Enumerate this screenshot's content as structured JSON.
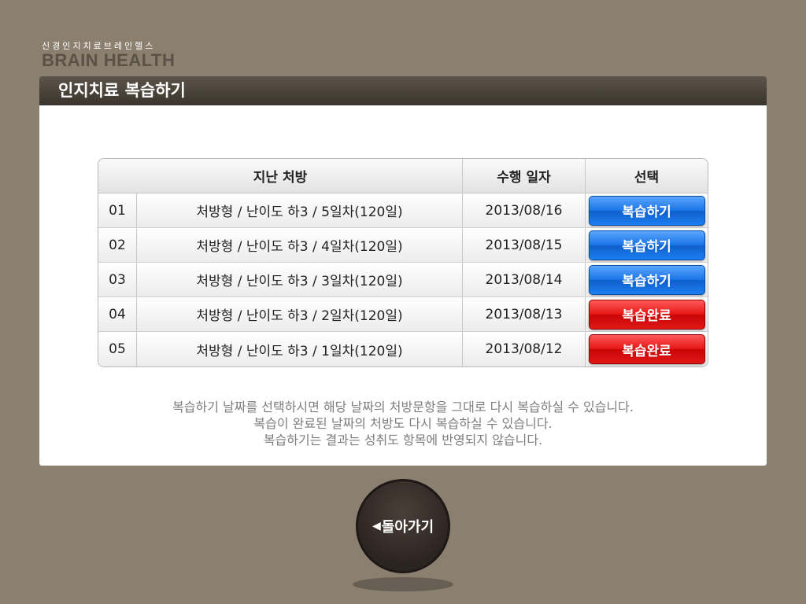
{
  "logo": {
    "subtitle": "신경인지치료브레인헬스",
    "title": "BRAIN HEALTH"
  },
  "panel": {
    "title": "인지치료 복습하기"
  },
  "table": {
    "headers": {
      "prescription": "지난 처방",
      "date": "수행 일자",
      "select": "선택"
    },
    "rows": [
      {
        "num": "01",
        "desc": "처방형 / 난이도 하3 / 5일차(120일)",
        "date": "2013/08/16",
        "action": "복습하기",
        "status": "available"
      },
      {
        "num": "02",
        "desc": "처방형 / 난이도 하3 / 4일차(120일)",
        "date": "2013/08/15",
        "action": "복습하기",
        "status": "available"
      },
      {
        "num": "03",
        "desc": "처방형 / 난이도 하3 / 3일차(120일)",
        "date": "2013/08/14",
        "action": "복습하기",
        "status": "available"
      },
      {
        "num": "04",
        "desc": "처방형 / 난이도 하3 / 2일차(120일)",
        "date": "2013/08/13",
        "action": "복습완료",
        "status": "completed"
      },
      {
        "num": "05",
        "desc": "처방형 / 난이도 하3 / 1일차(120일)",
        "date": "2013/08/12",
        "action": "복습완료",
        "status": "completed"
      }
    ]
  },
  "notice": {
    "line1": "복습하기 날짜를 선택하시면 해당 날짜의 처방문항을 그대로 다시 복습하실 수 있습니다.",
    "line2": "복습이 완료된 날짜의 처방도 다시 복습하실 수 있습니다.",
    "line3": "복습하기는 결과는 성취도 항목에 반영되지 않습니다."
  },
  "back_button": {
    "arrow": "◀",
    "label": "돌아가기"
  },
  "colors": {
    "background": "#8b8070",
    "header": "#3a342c",
    "blue_button": "#1a73e6",
    "red_button": "#e41414"
  }
}
